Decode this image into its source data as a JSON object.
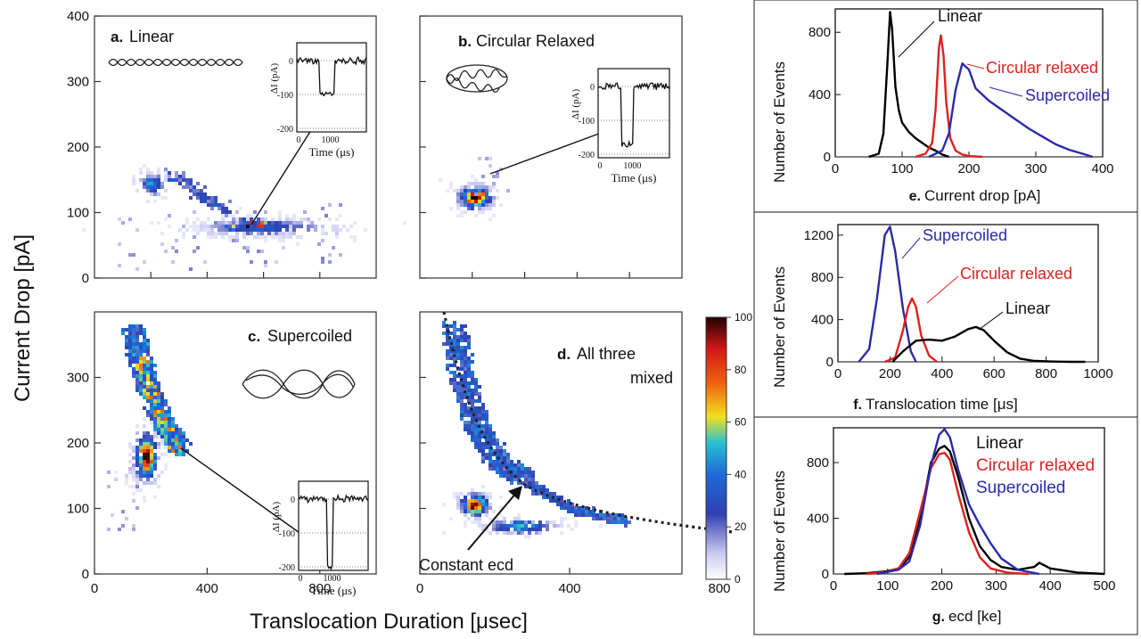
{
  "figure": {
    "left_ylabel": "Current Drop [pA]",
    "bottom_xlabel": "Translocation Duration [μsec]"
  },
  "colors": {
    "linear": "#000000",
    "circular_relaxed": "#e02020",
    "supercoiled": "#2a2aa8"
  },
  "colorbar": {
    "ticks": [
      "0",
      "20",
      "40",
      "60",
      "80",
      "100"
    ]
  },
  "scatter_axes": {
    "y_ticks": [
      "0",
      "100",
      "200",
      "300",
      "400"
    ],
    "y_ticks_lower": [
      "0",
      "100",
      "200",
      "300"
    ],
    "x_ticks": [
      "0",
      "400",
      "800"
    ]
  },
  "inset": {
    "xlabel": "Time (μs)",
    "ylabel": "ΔI (pA)",
    "x_ticks": [
      "0",
      "1000"
    ],
    "y_ticks": [
      "0",
      "-100",
      "-200"
    ]
  },
  "panels": {
    "a": {
      "letter": "a.",
      "title": "Linear"
    },
    "b": {
      "letter": "b.",
      "title": "Circular Relaxed"
    },
    "c": {
      "letter": "c.",
      "title": "Supercoiled"
    },
    "d": {
      "letter": "d.",
      "title_line1": "All three",
      "title_line2": "mixed",
      "annotation": "Constant ecd"
    },
    "e": {
      "letter": "e.",
      "xlabel": "Current drop [pA]",
      "ylabel": "Number of Events"
    },
    "f": {
      "letter": "f.",
      "xlabel": "Translocation time [μs]",
      "ylabel": "Number of Events"
    },
    "g": {
      "letter": "g.",
      "xlabel": "ecd [ke]",
      "ylabel": "Number of Events"
    }
  },
  "chart_data": [
    {
      "type": "heatmap",
      "panel": "a",
      "title": "Linear",
      "xlabel": "Translocation Duration [μsec]",
      "ylabel": "Current Drop [pA]",
      "xlim": [
        0,
        1000
      ],
      "ylim": [
        0,
        400
      ],
      "clusters": [
        {
          "x": 550,
          "y": 82,
          "intensity": 100
        },
        {
          "x": 180,
          "y": 150,
          "intensity": 40
        }
      ]
    },
    {
      "type": "heatmap",
      "panel": "b",
      "title": "Circular Relaxed",
      "xlim": [
        0,
        1000
      ],
      "ylim": [
        0,
        400
      ],
      "clusters": [
        {
          "x": 270,
          "y": 150,
          "intensity": 100
        }
      ]
    },
    {
      "type": "heatmap",
      "panel": "c",
      "title": "Supercoiled",
      "xlim": [
        0,
        1000
      ],
      "ylim": [
        0,
        400
      ],
      "clusters": [
        {
          "x": 210,
          "y": 195,
          "intensity": 100
        },
        {
          "x": 160,
          "y": 330,
          "intensity": 40
        }
      ]
    },
    {
      "type": "heatmap",
      "panel": "d",
      "title": "All three mixed",
      "annotation": "Constant ecd",
      "xlim": [
        0,
        1000
      ],
      "ylim": [
        0,
        400
      ],
      "clusters": [
        {
          "x": 200,
          "y": 300,
          "intensity": 50
        },
        {
          "x": 270,
          "y": 150,
          "intensity": 100
        },
        {
          "x": 550,
          "y": 82,
          "intensity": 60
        }
      ]
    },
    {
      "type": "line",
      "panel": "e",
      "xlabel": "Current drop [pA]",
      "ylabel": "Number of Events",
      "xlim": [
        0,
        400
      ],
      "ylim": [
        0,
        950
      ],
      "x_ticks": [
        0,
        100,
        200,
        300,
        400
      ],
      "y_ticks": [
        0,
        400,
        800
      ],
      "series": [
        {
          "name": "Linear",
          "color": "#000000",
          "x": [
            50,
            65,
            72,
            78,
            82,
            85,
            90,
            95,
            100,
            110,
            120,
            130,
            140,
            150,
            160,
            170
          ],
          "y": [
            0,
            20,
            150,
            600,
            930,
            820,
            450,
            300,
            220,
            160,
            120,
            90,
            60,
            40,
            15,
            0
          ]
        },
        {
          "name": "Circular relaxed",
          "color": "#e02020",
          "x": [
            120,
            135,
            145,
            150,
            155,
            158,
            162,
            166,
            172,
            180,
            190,
            200,
            220
          ],
          "y": [
            0,
            20,
            90,
            300,
            700,
            780,
            650,
            350,
            120,
            40,
            15,
            5,
            0
          ]
        },
        {
          "name": "Supercoiled",
          "color": "#2a2aa8",
          "x": [
            140,
            160,
            170,
            180,
            190,
            200,
            210,
            230,
            250,
            270,
            290,
            310,
            330,
            350,
            370,
            385
          ],
          "y": [
            0,
            40,
            150,
            430,
            600,
            560,
            440,
            360,
            300,
            240,
            180,
            130,
            80,
            45,
            20,
            0
          ]
        }
      ]
    },
    {
      "type": "line",
      "panel": "f",
      "xlabel": "Translocation time [μs]",
      "ylabel": "Number of Events",
      "xlim": [
        0,
        1000
      ],
      "ylim": [
        0,
        1300
      ],
      "x_ticks": [
        0,
        200,
        400,
        600,
        800,
        1000
      ],
      "y_ticks": [
        0,
        400,
        800,
        1200
      ],
      "series": [
        {
          "name": "Supercoiled",
          "color": "#2a2aa8",
          "x": [
            80,
            120,
            150,
            180,
            200,
            220,
            250,
            280,
            300
          ],
          "y": [
            0,
            120,
            600,
            1200,
            1280,
            1050,
            500,
            100,
            0
          ]
        },
        {
          "name": "Circular relaxed",
          "color": "#e02020",
          "x": [
            180,
            220,
            250,
            270,
            285,
            300,
            320,
            350,
            380
          ],
          "y": [
            0,
            40,
            300,
            520,
            600,
            520,
            250,
            60,
            0
          ]
        },
        {
          "name": "Linear",
          "color": "#000000",
          "x": [
            210,
            250,
            300,
            350,
            400,
            450,
            500,
            530,
            560,
            600,
            650,
            700,
            750,
            800,
            850,
            900,
            950
          ],
          "y": [
            0,
            100,
            200,
            210,
            200,
            240,
            310,
            330,
            300,
            200,
            90,
            30,
            10,
            5,
            2,
            0,
            0
          ]
        }
      ]
    },
    {
      "type": "line",
      "panel": "g",
      "xlabel": "ecd [ke]",
      "ylabel": "Number of Events",
      "xlim": [
        0,
        500
      ],
      "ylim": [
        0,
        1050
      ],
      "x_ticks": [
        0,
        100,
        200,
        300,
        400,
        500
      ],
      "y_ticks": [
        0,
        400,
        800
      ],
      "legend": [
        "Linear",
        "Circular relaxed",
        "Supercoiled"
      ],
      "series": [
        {
          "name": "Linear",
          "color": "#000000",
          "x": [
            20,
            60,
            100,
            120,
            140,
            160,
            180,
            195,
            205,
            215,
            230,
            250,
            270,
            290,
            310,
            340,
            370,
            380,
            400,
            450,
            500
          ],
          "y": [
            0,
            5,
            20,
            40,
            120,
            400,
            800,
            900,
            920,
            880,
            700,
            400,
            200,
            100,
            50,
            30,
            50,
            80,
            40,
            10,
            0
          ]
        },
        {
          "name": "Circular relaxed",
          "color": "#e02020",
          "x": [
            60,
            100,
            120,
            140,
            160,
            180,
            195,
            205,
            215,
            230,
            250,
            270,
            290,
            320,
            360
          ],
          "y": [
            0,
            15,
            40,
            150,
            450,
            760,
            860,
            870,
            820,
            580,
            300,
            120,
            40,
            10,
            0
          ]
        },
        {
          "name": "Supercoiled",
          "color": "#2a2aa8",
          "x": [
            80,
            120,
            140,
            160,
            180,
            195,
            205,
            215,
            230,
            250,
            270,
            290,
            310,
            340,
            380
          ],
          "y": [
            0,
            30,
            90,
            350,
            780,
            1000,
            1040,
            980,
            750,
            500,
            350,
            220,
            110,
            30,
            0
          ]
        }
      ]
    }
  ]
}
